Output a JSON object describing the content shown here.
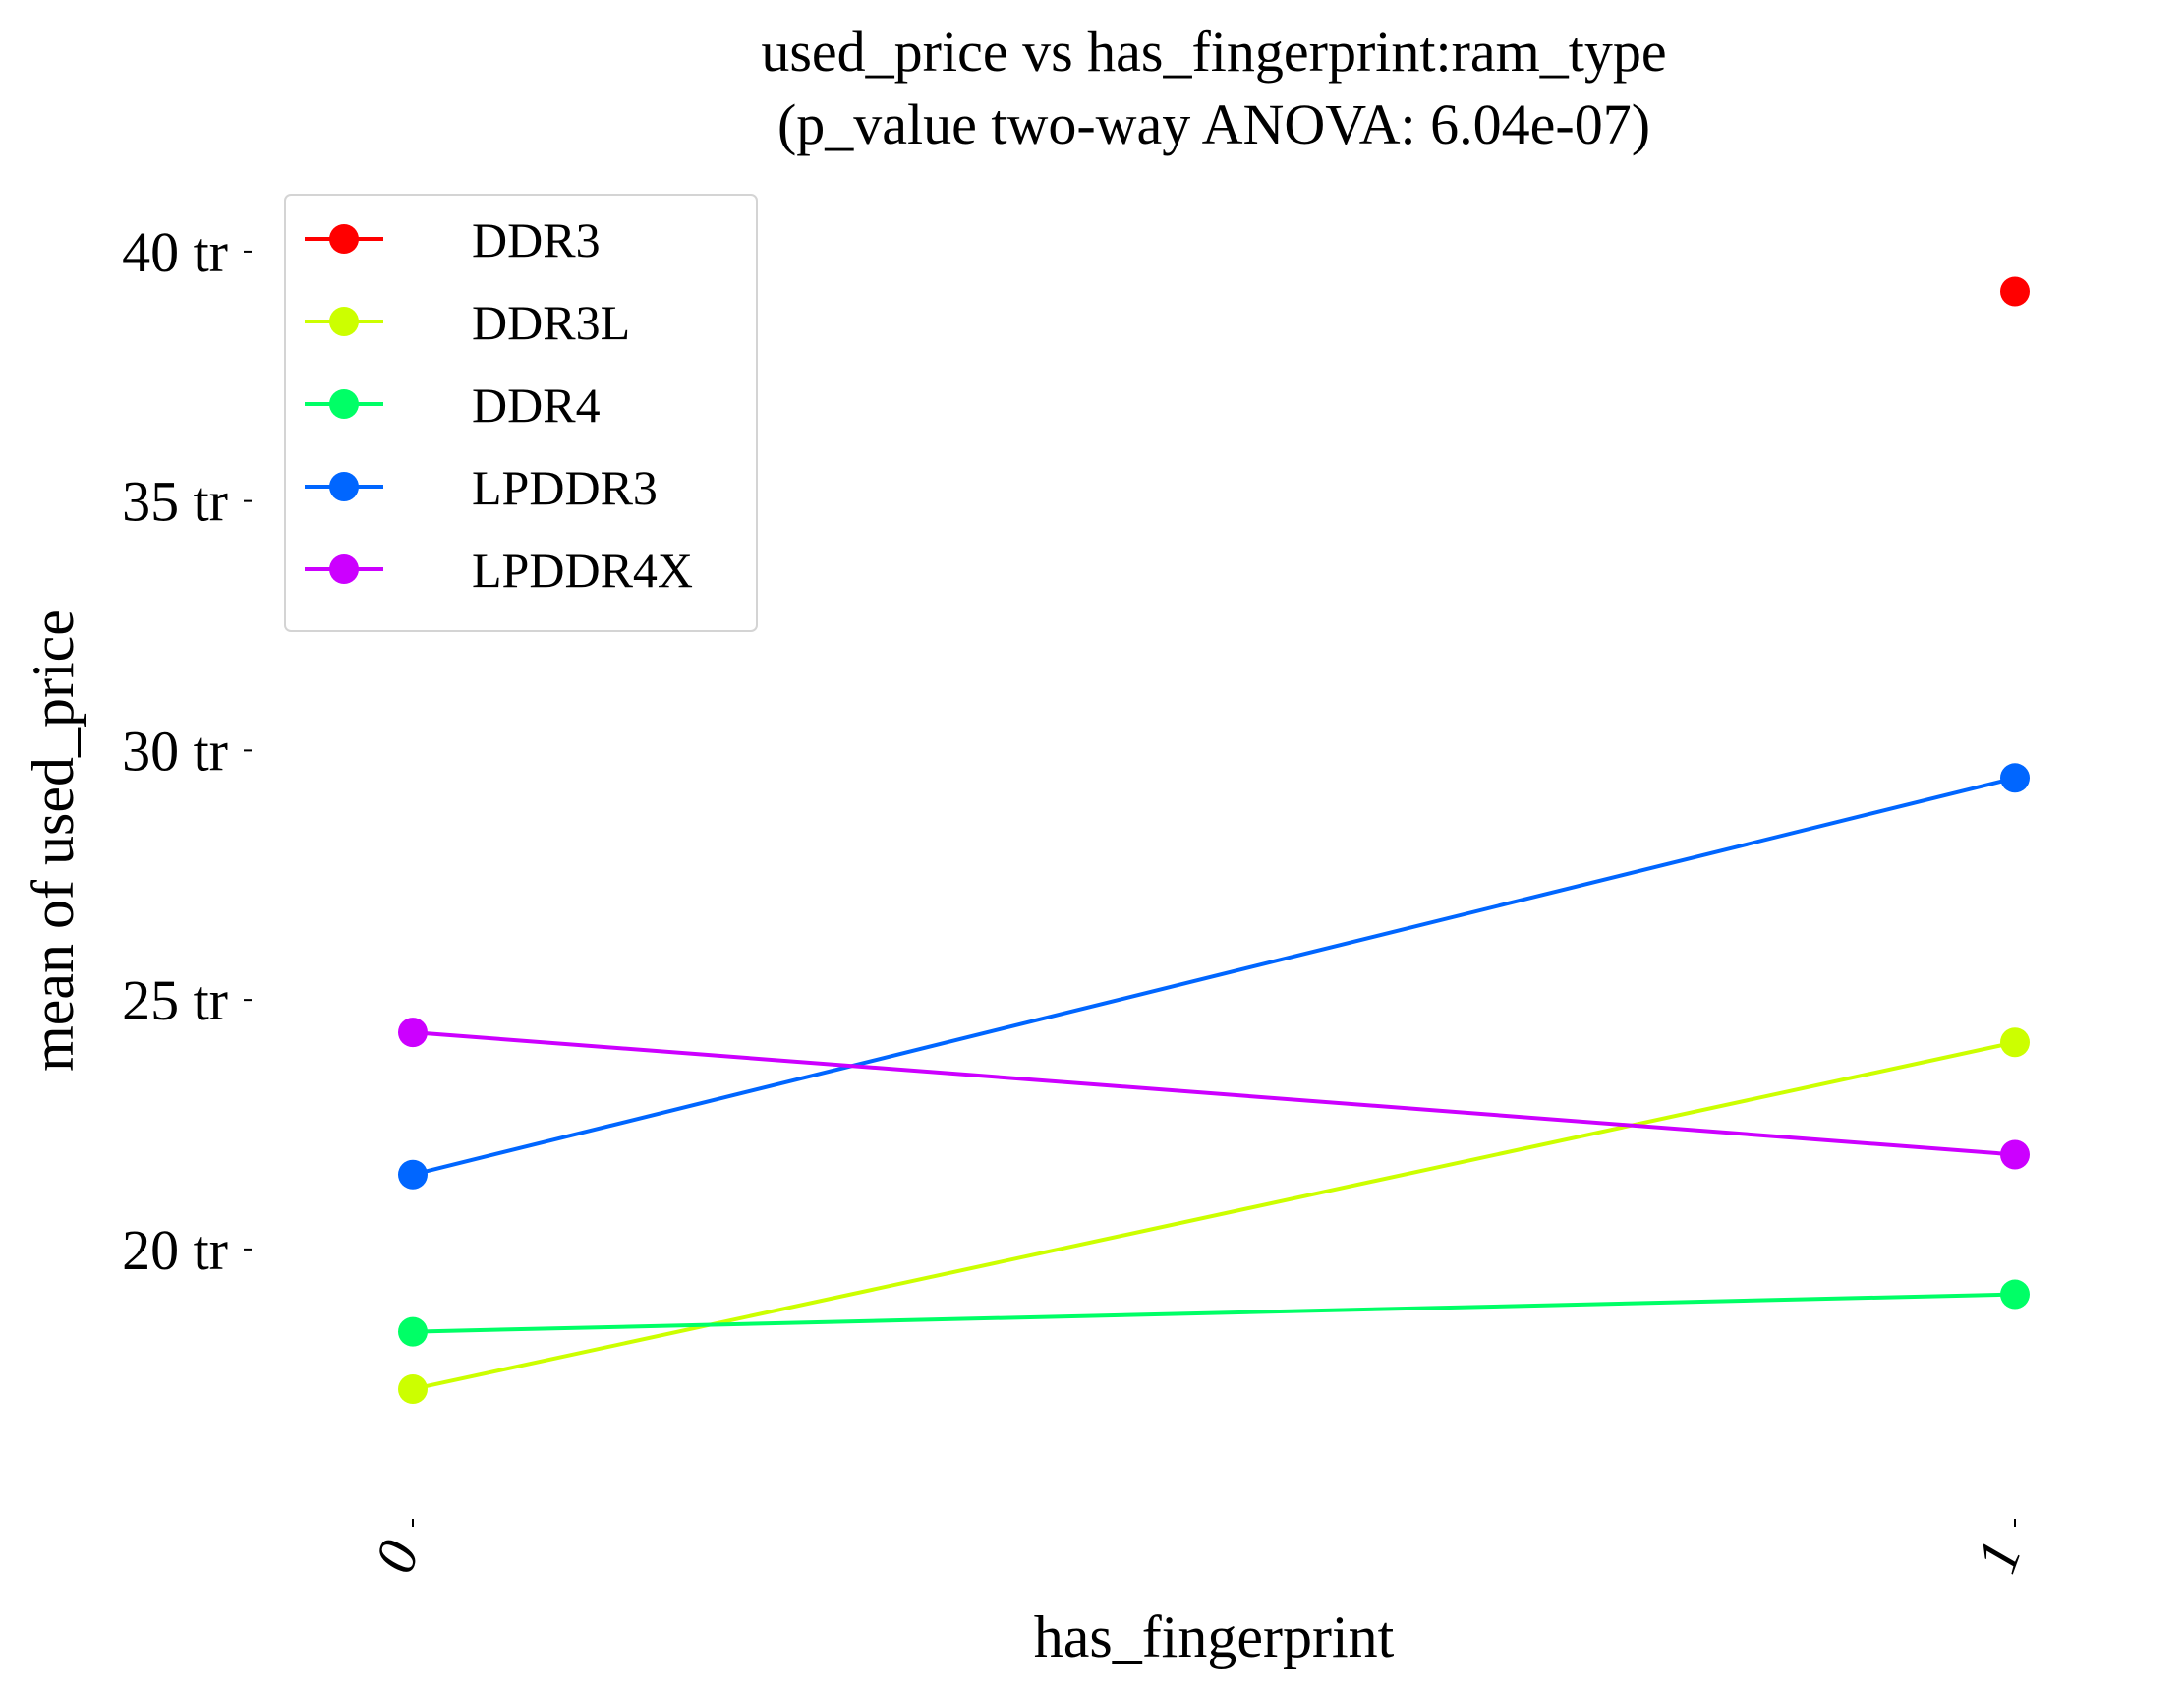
{
  "chart_data": {
    "type": "line",
    "title_line1": "used_price vs has_fingerprint:ram_type",
    "title_line2": "(p_value two-way ANOVA: 6.04e-07)",
    "xlabel": "has_fingerprint",
    "ylabel": "mean of used_price",
    "categories": [
      "0",
      "1"
    ],
    "y_ticks": [
      20,
      25,
      30,
      35,
      40
    ],
    "y_tick_labels": [
      "20 tr",
      "25 tr",
      "30 tr",
      "35 tr",
      "40 tr"
    ],
    "ylim": [
      14.5,
      41.2
    ],
    "grid": false,
    "legend_position": "top-left",
    "series": [
      {
        "name": "DDR3",
        "color": "#ff0000",
        "values": [
          null,
          39.2
        ]
      },
      {
        "name": "DDR3L",
        "color": "#ccff00",
        "values": [
          17.2,
          24.15
        ]
      },
      {
        "name": "DDR4",
        "color": "#00ff66",
        "values": [
          18.35,
          19.1
        ]
      },
      {
        "name": "LPDDR3",
        "color": "#0066ff",
        "values": [
          21.5,
          29.45
        ]
      },
      {
        "name": "LPDDR4X",
        "color": "#cc00ff",
        "values": [
          24.35,
          21.9
        ]
      }
    ]
  }
}
